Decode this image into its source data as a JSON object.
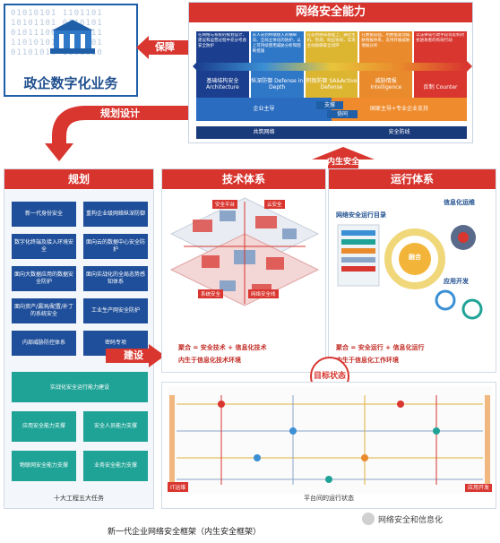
{
  "gov": {
    "digits": "01010101 1101101\n10101101 0110101\n01011100 1101011\n11010101 0101101\n01101010 1101010",
    "title": "政企数字化业务"
  },
  "arrows": {
    "baozhang": "保障",
    "guihua": "规划设计",
    "jianshe": "建设",
    "neisheng": "内生安全"
  },
  "capability": {
    "title": "网络安全能力",
    "columns": [
      {
        "desc": "在网络与系统的规划设计、建设和运营过程中充分考虑安全防护",
        "name": "基础结构安全 Architecture",
        "color": "#1b3f8e"
      },
      {
        "desc": "从人员到终端接入的横纵向、全局立体化的防护，以上可持续使用威胁分析和阻断措施",
        "name": "纵深防御 Defense in Depth",
        "color": "#2f77c7"
      },
      {
        "desc": "在态势感知基础上，通过主机、检测、响应协同，实现主动防御安全闭环",
        "name": "积极防御 SA&Active Defense",
        "color": "#dcb531"
      },
      {
        "desc": "在数据层面，用数据驱动威胁情报体系，支持开展威胁情报分析",
        "name": "威胁情报 Intelligence",
        "color": "#e98a2c"
      },
      {
        "desc": "以法律或行政手段等反制对抗进攻者的有效行动",
        "name": "反制 Counter",
        "color": "#d8362f"
      }
    ],
    "lower_left": "企业主导",
    "lower_right": "国家主导+专业企业支持",
    "support": "支撑",
    "synergy": "协同",
    "bottom_left": "共筑网络",
    "bottom_right": "安全防线"
  },
  "plan": {
    "title": "规划",
    "items": [
      "新一代身份安全",
      "重构企业级网络纵深防御",
      "数字化终端及接入环境安全",
      "面向云的数据中心安全防护",
      "面向大数据应用的数据安全防护",
      "面向实战化的全局态势感知体系",
      "面向资产/漏洞/配置/补丁的系统安全",
      "工业生产网安全防护",
      "内部威胁防控体系",
      "密码专项"
    ],
    "wide": "实战化安全运行能力建设",
    "items2": [
      "应用安全能力支撑",
      "安全人员能力支撑",
      "物联网安全能力支撑",
      "业务安全能力支撑"
    ],
    "footer": "十大工程五大任务"
  },
  "tech": {
    "title": "技术体系",
    "tags": [
      "安全平台",
      "云安全",
      "系统安全",
      "网络安全线"
    ],
    "line1": "聚合 = 安全技术 + 信息化技术",
    "line2": "内生于信息化技术环境"
  },
  "ops": {
    "title": "运行体系",
    "dir": "网络安全运行目录",
    "info": "信息化运维",
    "app": "应用开发",
    "hub": "融合",
    "line1": "聚合 = 安全运行 + 信息化运行",
    "line2": "内生于信息化工作环境"
  },
  "state": {
    "goal": "目标状态",
    "footer": "平台间的运行状态",
    "it": "IT运维",
    "app": "应用开发"
  },
  "caption": "新一代企业网络安全框架（内生安全框架）",
  "watermark": "网络安全和信息化"
}
